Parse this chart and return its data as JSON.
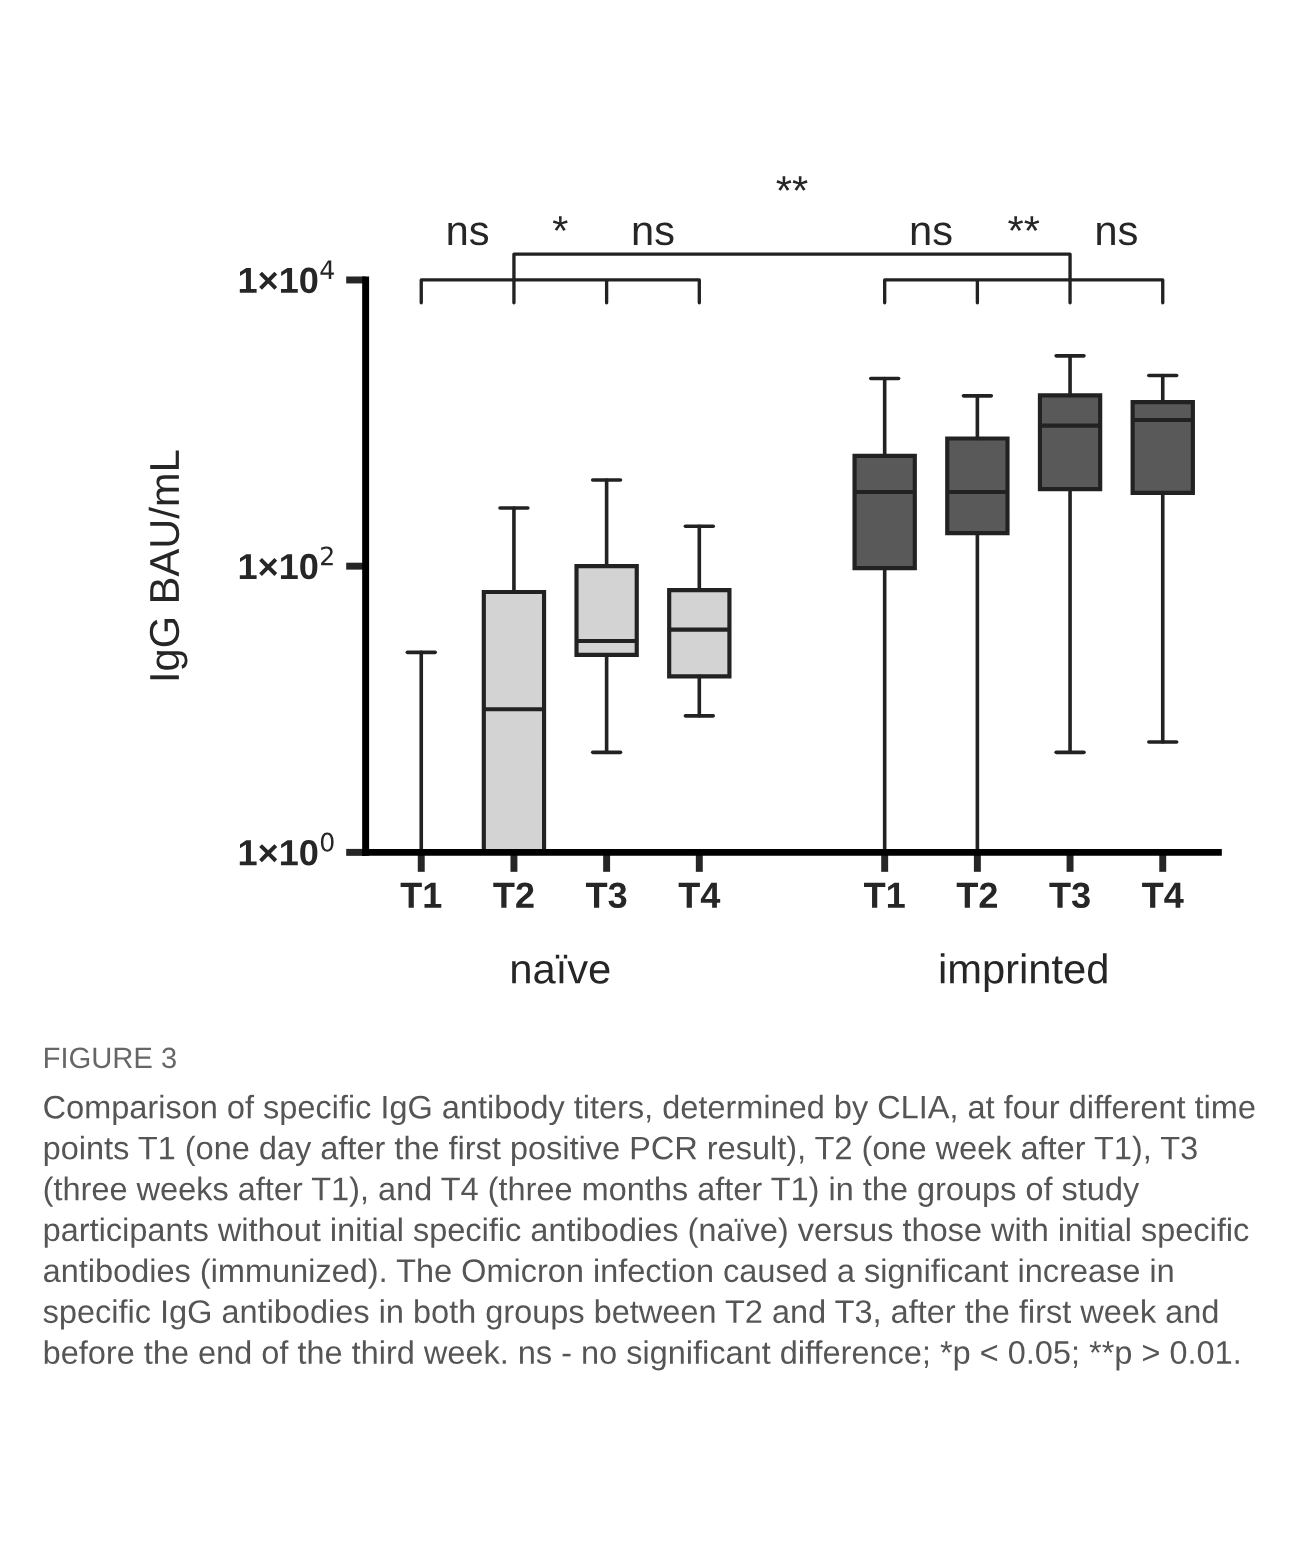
{
  "chart_data": {
    "type": "box",
    "ylabel": "IgG BAU/mL",
    "categories": [
      "T1",
      "T2",
      "T3",
      "T4",
      null,
      "T1",
      "T2",
      "T3",
      "T4"
    ],
    "boxes": [
      {
        "low": 1,
        "q1": 1,
        "median": 1,
        "q3": 1,
        "high": 25
      },
      {
        "low": 1,
        "q1": 1,
        "median": 10,
        "q3": 66,
        "high": 255
      },
      {
        "low": 5,
        "q1": 24,
        "median": 30,
        "q3": 100,
        "high": 400
      },
      {
        "low": 9,
        "q1": 17,
        "median": 36,
        "q3": 68,
        "high": 190
      },
      null,
      {
        "low": 1,
        "q1": 97,
        "median": 330,
        "q3": 590,
        "high": 2050
      },
      {
        "low": 1,
        "q1": 170,
        "median": 330,
        "q3": 780,
        "high": 1550
      },
      {
        "low": 5,
        "q1": 345,
        "median": 960,
        "q3": 1560,
        "high": 2950
      },
      {
        "low": 5.9,
        "q1": 325,
        "median": 1050,
        "q3": 1400,
        "high": 2150
      }
    ],
    "colors": [
      null,
      "#d3d3d3",
      "#d3d3d3",
      "#d3d3d3",
      null,
      "#595959",
      "#595959",
      "#595959",
      "#595959"
    ],
    "log": true,
    "ylim": [
      1,
      10000
    ],
    "yticks": [
      {
        "value": 1,
        "label": "1×10$^{0}$"
      },
      {
        "value": 100,
        "label": "1×10$^{2}$"
      },
      {
        "value": 10000,
        "label": "1×10$^{4}$"
      }
    ],
    "grid": false,
    "legend": false,
    "annotations": [
      "**",
      "ns",
      "*",
      "ns",
      "ns",
      "**",
      "ns",
      "naïve",
      "imprinted",
      "FIGURE 3",
      "Comparison of specific IgG antibody titers, determined by CLIA, at four different time points T1 (one day after the first positive PCR result), T2 (one week after T1), T3 (three weeks after T1), and T4 (three months after T1) in the groups of study participants without initial specific antibodies (naïve) versus those with initial specific antibodies (immunized). The Omicron infection caused a significant increase in specific IgG antibodies in both groups between T2 and T3, after the first week and before the end of the third week. ns - no significant difference; *p < 0.05; **p > 0.01."
    ]
  }
}
